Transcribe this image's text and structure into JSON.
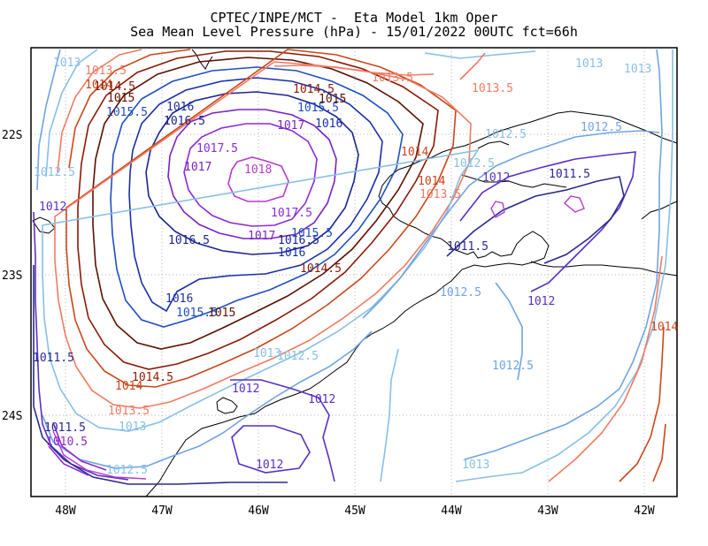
{
  "header": {
    "line1": "CPTEC/INPE/MCT -  Eta Model 1km Oper",
    "line2": "Sea Mean Level Pressure (hPa) - 15/01/2022 00UTC fct=66h"
  },
  "axes": {
    "x_ticks": [
      "48W",
      "47W",
      "46W",
      "45W",
      "44W",
      "43W",
      "42W"
    ],
    "y_ticks": [
      "22S",
      "23S",
      "24S"
    ]
  },
  "contour_labels": [
    {
      "text": "1013",
      "color": "#87bfe8"
    },
    {
      "text": "1013.5",
      "color": "#f07b62"
    },
    {
      "text": "1014",
      "color": "#c9471b"
    },
    {
      "text": "1014.5",
      "color": "#8a1a05"
    },
    {
      "text": "1015",
      "color": "#5c1000"
    },
    {
      "text": "1015.5",
      "color": "#1f4fbf"
    },
    {
      "text": "1016",
      "color": "#1a2ea8"
    },
    {
      "text": "1016.5",
      "color": "#1b2491"
    },
    {
      "text": "1017",
      "color": "#7b22c4"
    },
    {
      "text": "1017.5",
      "color": "#8e2ad6"
    },
    {
      "text": "1018",
      "color": "#b63bc9"
    },
    {
      "text": "1014.5",
      "color": "#8a1a05"
    },
    {
      "text": "1015",
      "color": "#5c1000"
    },
    {
      "text": "1015.5",
      "color": "#1f4fbf"
    },
    {
      "text": "1016",
      "color": "#1a2ea8"
    },
    {
      "text": "1017",
      "color": "#7b22c4"
    },
    {
      "text": "1014.5",
      "color": "#8a1a05"
    },
    {
      "text": "1014",
      "color": "#c9471b"
    },
    {
      "text": "1013.5",
      "color": "#f07b62"
    },
    {
      "text": "1014",
      "color": "#c9471b"
    },
    {
      "text": "1013.5",
      "color": "#f07b62"
    },
    {
      "text": "1012.5",
      "color": "#87bfe8"
    },
    {
      "text": "1012",
      "color": "#5a2fc4"
    },
    {
      "text": "1011.5",
      "color": "#2a2a8f"
    },
    {
      "text": "1011.5",
      "color": "#2a2a8f"
    },
    {
      "text": "1012",
      "color": "#5a2fc4"
    },
    {
      "text": "1012.5",
      "color": "#6fa4e0"
    },
    {
      "text": "1012.5",
      "color": "#87bfe8"
    },
    {
      "text": "1013",
      "color": "#87bfe8"
    },
    {
      "text": "1013",
      "color": "#87bfe8"
    },
    {
      "text": "1013.5",
      "color": "#f07b62"
    },
    {
      "text": "1014",
      "color": "#c9471b"
    },
    {
      "text": "1012.5",
      "color": "#6fa4e0"
    },
    {
      "text": "1012.5",
      "color": "#87bfe8"
    },
    {
      "text": "1012",
      "color": "#5a2fc4"
    },
    {
      "text": "1011.5",
      "color": "#2a2a8f"
    },
    {
      "text": "1011.5",
      "color": "#2a2a8f"
    },
    {
      "text": "1010.5",
      "color": "#8e2ad6"
    },
    {
      "text": "1012.5",
      "color": "#87bfe8"
    },
    {
      "text": "1013",
      "color": "#87bfe8"
    },
    {
      "text": "1013.5",
      "color": "#f07b62"
    },
    {
      "text": "1014",
      "color": "#c9471b"
    },
    {
      "text": "1014.5",
      "color": "#8a1a05"
    },
    {
      "text": "1012",
      "color": "#5a2fc4"
    },
    {
      "text": "1012",
      "color": "#5a2fc4"
    },
    {
      "text": "1012",
      "color": "#5a2fc4"
    },
    {
      "text": "1012.5",
      "color": "#87bfe8"
    },
    {
      "text": "1013",
      "color": "#87bfe8"
    },
    {
      "text": "1012.5",
      "color": "#6fa4e0"
    },
    {
      "text": "1013",
      "color": "#87bfe8"
    },
    {
      "text": "1016.5",
      "color": "#1b2491"
    },
    {
      "text": "1016",
      "color": "#1a2ea8"
    },
    {
      "text": "1015.5",
      "color": "#1f4fbf"
    },
    {
      "text": "1015",
      "color": "#5c1000"
    },
    {
      "text": "1016.5",
      "color": "#1b2491"
    },
    {
      "text": "1015.5",
      "color": "#1f4fbf"
    },
    {
      "text": "1017",
      "color": "#7b22c4"
    },
    {
      "text": "1016",
      "color": "#1a2ea8"
    },
    {
      "text": "1017.5",
      "color": "#8e2ad6"
    }
  ]
}
